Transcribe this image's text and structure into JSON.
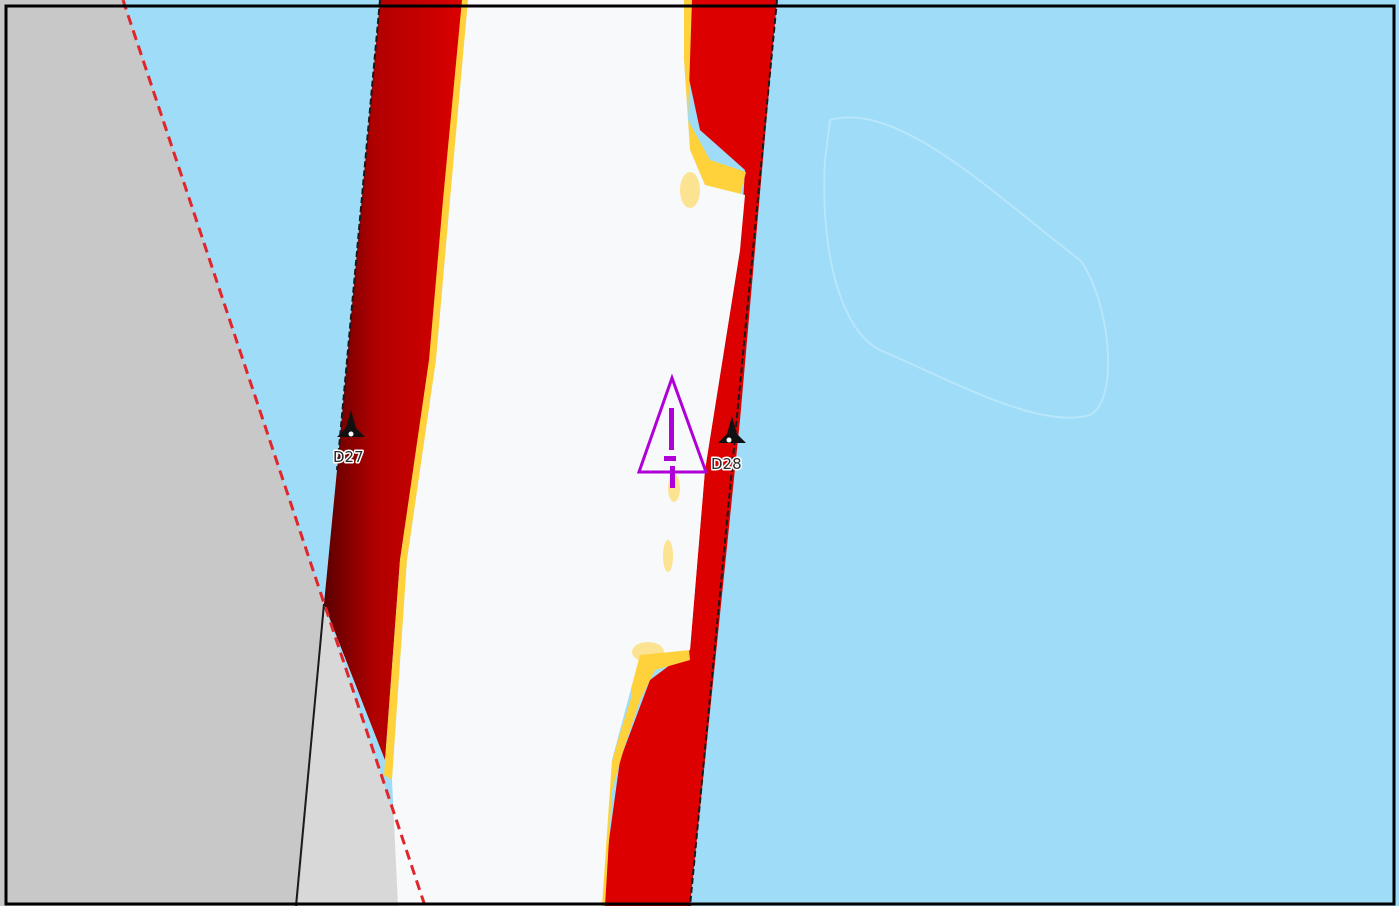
{
  "map": {
    "colors": {
      "water": "#9edcf8",
      "land": "#c8c8c8",
      "land_light": "#d8d8d8",
      "channel_center": "#f7f9fa",
      "channel_edge_red": "#dd0000",
      "channel_edge_dark": "#7a0000",
      "shallow_yellow": "#ffd23c",
      "boundary_red": "#e0262b",
      "hazard_magenta": "#b000d8",
      "frame": "#000000"
    },
    "markers": [
      {
        "id": "D27",
        "label": "D27",
        "icon": "beacon-icon"
      },
      {
        "id": "D28",
        "label": "D28",
        "icon": "beacon-icon"
      }
    ],
    "hazard": {
      "icon": "caution-triangle-icon"
    }
  }
}
